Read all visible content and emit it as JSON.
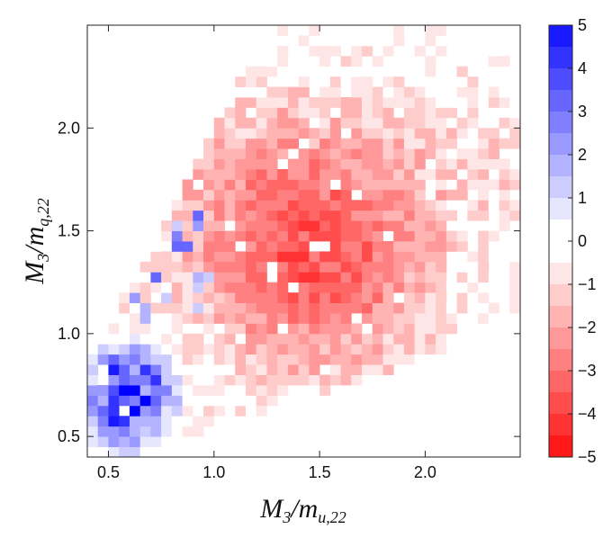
{
  "chart_data": {
    "type": "heatmap",
    "title": "",
    "xlabel": "M_3 / m_{u,22}",
    "ylabel": "M_3 / m_{q,22}",
    "xlabel_parts": {
      "main": "M",
      "sub1": "3",
      "sep": "/m",
      "sub2": "u,22"
    },
    "ylabel_parts": {
      "main": "M",
      "sub1": "3",
      "sep": "/m",
      "sub2": "q,22"
    },
    "xlim": [
      0.4,
      2.45
    ],
    "ylim": [
      0.4,
      2.5
    ],
    "x_ticks": [
      0.5,
      1.0,
      1.5,
      2.0
    ],
    "x_tick_labels": [
      "0.5",
      "1.0",
      "1.5",
      "2.0"
    ],
    "y_ticks": [
      0.5,
      1.0,
      1.5,
      2.0
    ],
    "y_tick_labels": [
      "0.5",
      "1.0",
      "1.5",
      "2.0"
    ],
    "bin_width_x": 0.05,
    "bin_width_y": 0.05,
    "color_range": [
      -5,
      5
    ],
    "colorbar_ticks": [
      5,
      4,
      3,
      2,
      1,
      0,
      -1,
      -2,
      -3,
      -4,
      -5
    ],
    "colorbar_tick_labels": [
      "5",
      "4",
      "3",
      "2",
      "1",
      "0",
      "−1",
      "−2",
      "−3",
      "−4",
      "−5"
    ],
    "colorbar_levels": 20,
    "colors": {
      "positive": "#0000ff",
      "negative": "#ff0000",
      "zero": "#ffffff"
    },
    "note": "Density of cells: red (negative) across the main body, blue (positive) cluster at small x and y."
  }
}
